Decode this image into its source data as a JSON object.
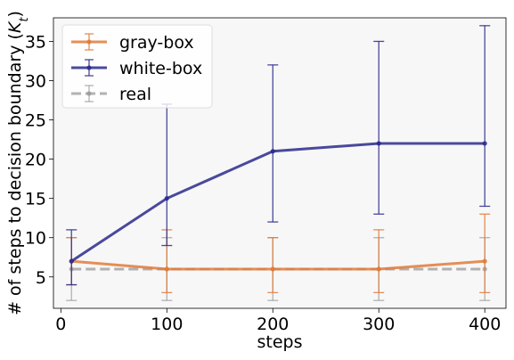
{
  "chart_data": {
    "type": "line",
    "xlabel": "steps",
    "ylabel": "# of steps to decision boundary (K_t)",
    "ylabel_main": "# of steps to decision boundary (",
    "ylabel_var": "K",
    "ylabel_sub": "t",
    "ylabel_end": ")",
    "xlim": [
      -7,
      420
    ],
    "ylim": [
      1,
      38
    ],
    "xticks": [
      0,
      100,
      200,
      300,
      400
    ],
    "yticks": [
      5,
      10,
      15,
      20,
      25,
      30,
      35
    ],
    "x": [
      10,
      100,
      200,
      300,
      400
    ],
    "grid": false,
    "legend_position": "top-left",
    "series": [
      {
        "name": "gray-box",
        "color": "#e07b39",
        "style": "solid",
        "values": [
          7,
          6,
          6,
          6,
          7
        ],
        "err_low": [
          4,
          3,
          3,
          3,
          3
        ],
        "err_high": [
          10,
          11,
          10,
          11,
          13
        ]
      },
      {
        "name": "white-box",
        "color": "#2b2a8c",
        "style": "solid",
        "values": [
          7,
          15,
          21,
          22,
          22
        ],
        "err_low": [
          4,
          9,
          12,
          13,
          14
        ],
        "err_high": [
          11,
          27,
          32,
          35,
          37
        ]
      },
      {
        "name": "real",
        "color": "#999999",
        "style": "dashed",
        "values": [
          6,
          6,
          6,
          6,
          6
        ],
        "err_low": [
          2,
          2,
          2,
          2,
          2
        ],
        "err_high": [
          10,
          10,
          10,
          10,
          10
        ]
      }
    ]
  }
}
